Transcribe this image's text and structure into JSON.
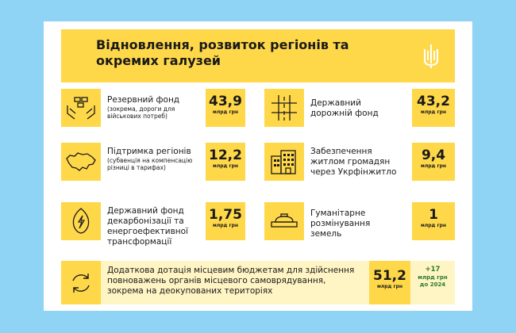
{
  "header": {
    "title_line1": "Відновлення, розвиток регіонів та",
    "title_line2": "окремих галузей"
  },
  "items": [
    {
      "icon": "gold-bars-hands-icon",
      "main": "Резервний фонд",
      "sub1": "(зокрема, дороги для",
      "sub2": "військових потреб)",
      "value": "43,9",
      "unit": "млрд грн"
    },
    {
      "icon": "road-icon",
      "main1": "Державний",
      "main2": "дорожній фонд",
      "value": "43,2",
      "unit": "млрд грн"
    },
    {
      "icon": "ukraine-map-icon",
      "main": "Підтримка регіонів",
      "sub1": "(субвенція на компенсацію",
      "sub2": "різниці в тарифах)",
      "value": "12,2",
      "unit": "млрд грн"
    },
    {
      "icon": "buildings-icon",
      "main1": "Забезпечення",
      "main2": "житлом громадян",
      "main3": "через Укрфінжитло",
      "value": "9,4",
      "unit": "млрд грн"
    },
    {
      "icon": "leaf-energy-icon",
      "main1": "Державний фонд",
      "main2": "декарбонізації та",
      "main3": "енергоефективної",
      "main4": "трансформації",
      "value": "1,75",
      "unit": "млрд грн"
    },
    {
      "icon": "landmine-icon",
      "main1": "Гуманітарне",
      "main2": "розмінування",
      "main3": "земель",
      "value": "1",
      "unit": "млрд грн"
    }
  ],
  "bottom": {
    "icon": "refresh-cycle-icon",
    "line1": "Додаткова дотація місцевим бюджетам для здійснення",
    "line2": "повноважень органів місцевого самоврядування,",
    "line3": "зокрема на деокупованих територіях",
    "value": "51,2",
    "unit": "млрд грн",
    "extra_plus": "+17",
    "extra_unit": "млрд грн",
    "extra_note": "до 2024"
  },
  "colors": {
    "background": "#8fd3f5",
    "accent": "#ffd84a",
    "light_accent": "#fff4c4",
    "green": "#2a7d2a"
  }
}
